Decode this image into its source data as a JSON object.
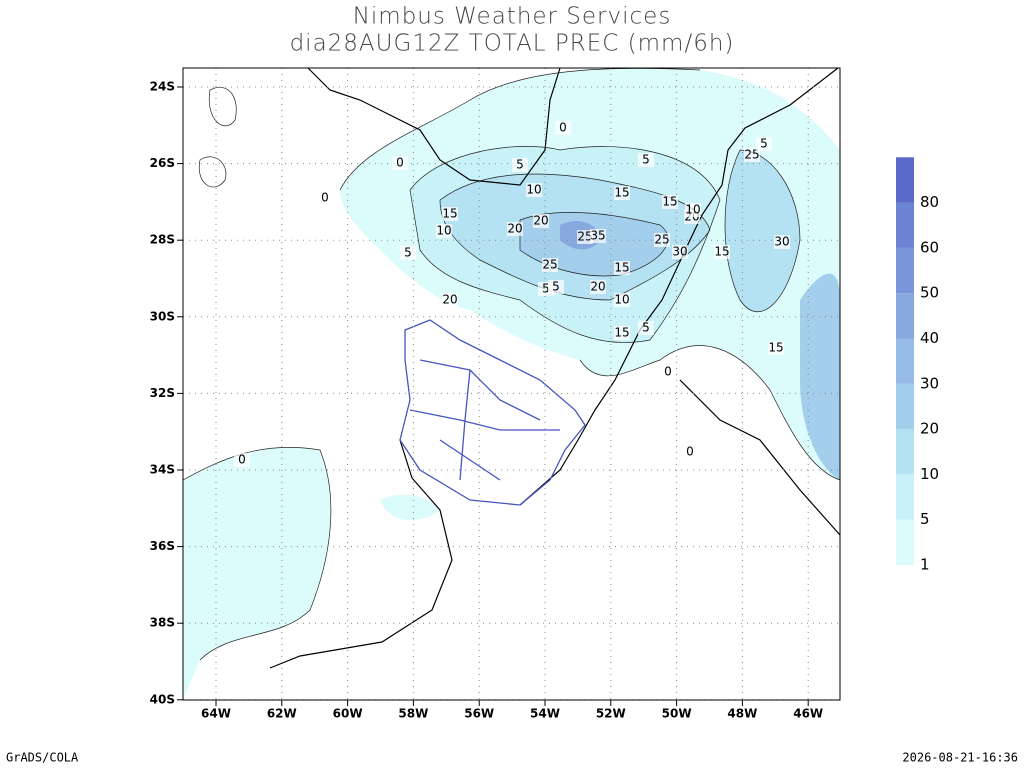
{
  "title": "Nimbus Weather Services",
  "subtitle": "dia28AUG12Z TOTAL PREC (mm/6h)",
  "footer_left": "GrADS/COLA",
  "footer_right": "2026-08-21-16:36",
  "lat_ticks": [
    {
      "value": -24,
      "label": "24S"
    },
    {
      "value": -26,
      "label": "26S"
    },
    {
      "value": -28,
      "label": "28S"
    },
    {
      "value": -30,
      "label": "30S"
    },
    {
      "value": -32,
      "label": "32S"
    },
    {
      "value": -34,
      "label": "34S"
    },
    {
      "value": -36,
      "label": "36S"
    },
    {
      "value": -38,
      "label": "38S"
    },
    {
      "value": -40,
      "label": "40S"
    }
  ],
  "lon_ticks": [
    {
      "value": -64,
      "label": "64W"
    },
    {
      "value": -62,
      "label": "62W"
    },
    {
      "value": -60,
      "label": "60W"
    },
    {
      "value": -58,
      "label": "58W"
    },
    {
      "value": -56,
      "label": "56W"
    },
    {
      "value": -54,
      "label": "54W"
    },
    {
      "value": -52,
      "label": "52W"
    },
    {
      "value": -50,
      "label": "50W"
    },
    {
      "value": -48,
      "label": "48W"
    },
    {
      "value": -46,
      "label": "46W"
    }
  ],
  "colorbar": {
    "levels": [
      1,
      5,
      10,
      20,
      30,
      40,
      50,
      60,
      80
    ],
    "colors": [
      "#dcfcfc",
      "#c8f2f8",
      "#b4e2f2",
      "#a4cfec",
      "#96bbe6",
      "#88a8e0",
      "#7a95da",
      "#6c82d2",
      "#5a6ac8"
    ]
  },
  "contour_labels": [
    5,
    10,
    15,
    10,
    20,
    20,
    25,
    35,
    25,
    5,
    5,
    15,
    20,
    20,
    5,
    15,
    5,
    15,
    20,
    25,
    30,
    15,
    10,
    15,
    5,
    25,
    5,
    30,
    15,
    10,
    0,
    0,
    0,
    0,
    0,
    0
  ]
}
